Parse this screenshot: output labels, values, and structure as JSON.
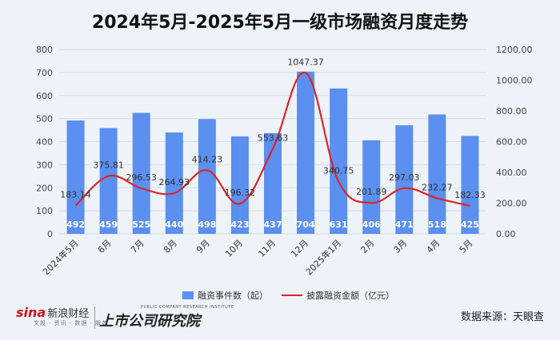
{
  "title": "2024年5月-2025年5月一级市场融资月度走势",
  "chart_data": {
    "type": "bar+line",
    "categories": [
      "2024年5月",
      "6月",
      "7月",
      "8月",
      "9月",
      "10月",
      "11月",
      "12月",
      "2025年1月",
      "2月",
      "3月",
      "4月",
      "5月"
    ],
    "series": [
      {
        "name": "融资事件数（起）",
        "type": "bar",
        "axis": "left",
        "values": [
          492,
          459,
          525,
          440,
          498,
          423,
          437,
          704,
          631,
          406,
          471,
          518,
          425
        ]
      },
      {
        "name": "披露融资金额（亿元）",
        "type": "line",
        "axis": "right",
        "values": [
          183.14,
          375.81,
          296.53,
          264.93,
          414.23,
          196.32,
          553.63,
          1047.37,
          340.75,
          201.89,
          297.03,
          232.27,
          182.33
        ]
      }
    ],
    "bar_labels": [
      "492",
      "459",
      "525",
      "440",
      "498",
      "423",
      "437",
      "704",
      "631",
      "406",
      "471",
      "518",
      "425"
    ],
    "line_labels": [
      "183.14",
      "375.81",
      "296.53",
      "264.93",
      "414.23",
      "196.32",
      "553.63",
      "1047.37",
      "340.75",
      "201.89",
      "297.03",
      "232.27",
      "182.33"
    ],
    "y_left": {
      "ticks": [
        "0",
        "100",
        "200",
        "300",
        "400",
        "500",
        "600",
        "700",
        "800"
      ],
      "ylim": [
        0,
        800
      ]
    },
    "y_right": {
      "ticks": [
        "0.00",
        "200.00",
        "400.00",
        "600.00",
        "800.00",
        "1000.00",
        "1200.00"
      ],
      "ylim": [
        0,
        1200
      ]
    },
    "grid": true,
    "legend_position": "bottom",
    "colors": {
      "bar": "#5b8ff0",
      "line": "#d9262c"
    }
  },
  "legend": {
    "bar_label": "融资事件数（起）",
    "line_label": "披露融资金额（亿元）"
  },
  "footer": {
    "sina_brand": "sina",
    "sina_cn": "新浪财经",
    "sina_sub": "文股 · 资讯 · 数据 · 服务",
    "institute_sub": "PUBLIC COMPANY RESEARCH INSTITUTE",
    "institute_cn": "上市公司研究院",
    "source": "数据来源：天眼查"
  }
}
